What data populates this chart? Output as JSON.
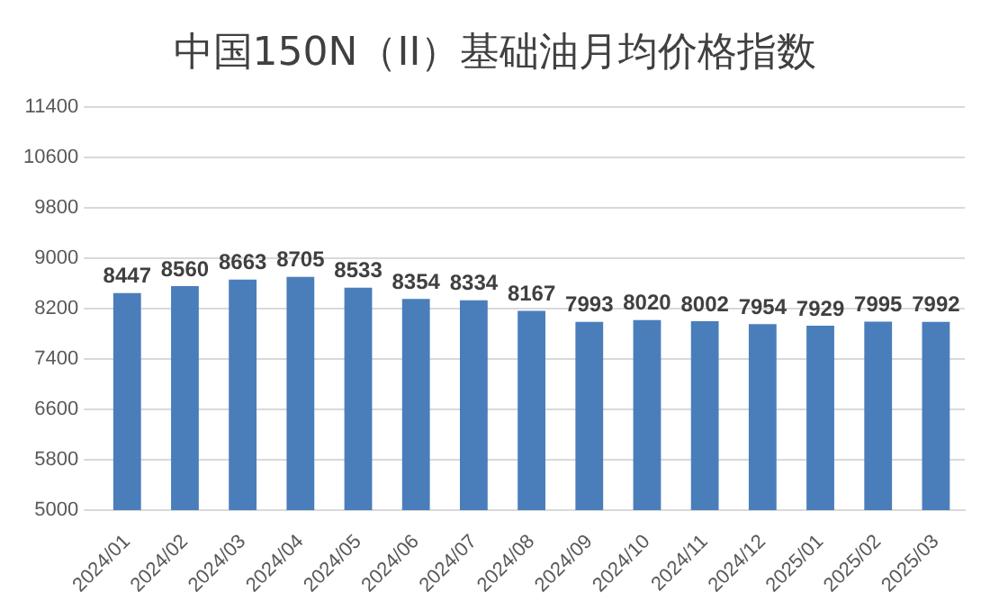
{
  "chart_data": {
    "type": "bar",
    "title": "中国150N（II）基础油月均价格指数",
    "categories": [
      "2024/01",
      "2024/02",
      "2024/03",
      "2024/04",
      "2024/05",
      "2024/06",
      "2024/07",
      "2024/08",
      "2024/09",
      "2024/10",
      "2024/11",
      "2024/12",
      "2025/01",
      "2025/02",
      "2025/03"
    ],
    "values": [
      8447,
      8560,
      8663,
      8705,
      8533,
      8354,
      8334,
      8167,
      7993,
      8020,
      8002,
      7954,
      7929,
      7995,
      7992
    ],
    "color": "#4a7ebb",
    "ylim": [
      5000,
      11400
    ],
    "yticks": [
      5000,
      5800,
      6600,
      7400,
      8200,
      9000,
      9800,
      10600,
      11400
    ],
    "grid": "y",
    "data_labels": true
  }
}
